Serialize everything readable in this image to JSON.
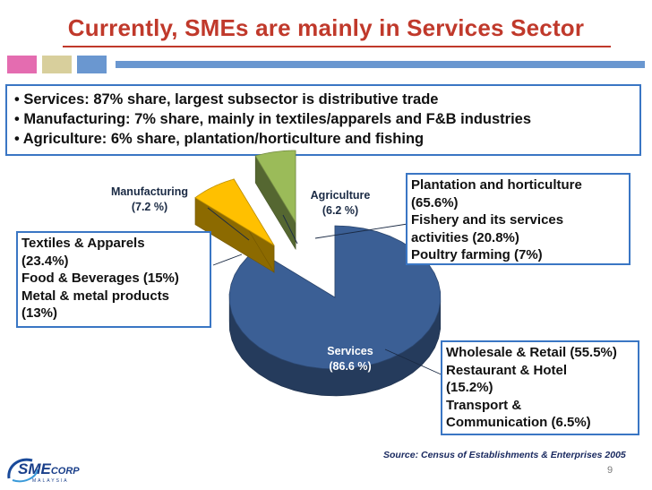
{
  "title": "Currently, SMEs are mainly in Services Sector",
  "bullets": [
    "• Services: 87% share, largest subsector is distributive trade",
    "• Manufacturing: 7% share, mainly in textiles/apparels and F&B industries",
    "• Agriculture: 6% share, plantation/horticulture and fishing"
  ],
  "boxes": {
    "manufacturing_detail": [
      "Textiles & Apparels",
      "(23.4%)",
      "Food  & Beverages (15%)",
      "Metal & metal products",
      "(13%)"
    ],
    "agriculture_detail": [
      "Plantation and horticulture",
      "(65.6%)",
      "Fishery and its services",
      "activities (20.8%)",
      "Poultry farming (7%)"
    ],
    "services_detail": [
      "Wholesale & Retail (55.5%)",
      "Restaurant  & Hotel",
      "(15.2%)",
      "Transport &",
      "Communication (6.5%)"
    ]
  },
  "chart_data": {
    "type": "pie",
    "title": "",
    "categories": [
      "Services",
      "Manufacturing",
      "Agriculture"
    ],
    "values": [
      86.6,
      7.2,
      6.2
    ],
    "data_labels": {
      "services": [
        "Services",
        "(86.6 %)"
      ],
      "manufacturing": [
        "Manufacturing",
        "(7.2 %)"
      ],
      "agriculture": [
        "Agriculture",
        "(6.2 %)"
      ]
    },
    "colors": [
      "#3b5f95",
      "#ffc000",
      "#9bbb59"
    ],
    "style": "3d-exploded"
  },
  "source": "Source: Census of Establishments & Enterprises 2005",
  "page_number": "9",
  "logo": {
    "text_main": "SME",
    "text_sub": "CORP",
    "tagline": "MALAYSIA",
    "icon": "smecorp-logo-swoosh"
  },
  "colors": {
    "title": "#c0392b",
    "box_border": "#3a76c4",
    "deco_pink": "#e46cb0",
    "deco_tan": "#d8cf9c",
    "deco_blue": "#6a97d0"
  }
}
